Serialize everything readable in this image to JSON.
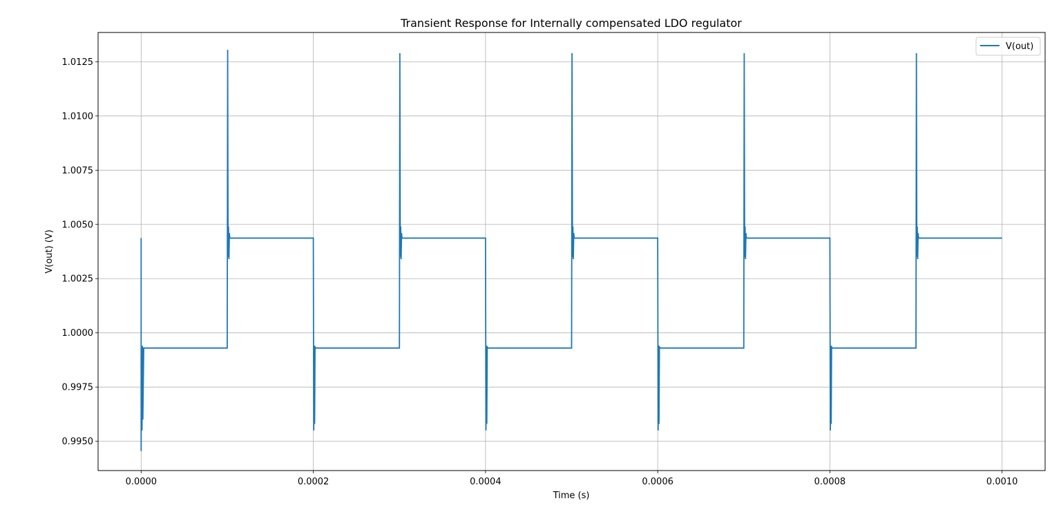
{
  "chart_data": {
    "type": "line",
    "title": "Transient Response for Internally compensated LDO regulator",
    "xlabel": "Time (s)",
    "ylabel": "V(out) (V)",
    "xlim": [
      -5e-05,
      0.00105
    ],
    "ylim": [
      0.99365,
      1.01385
    ],
    "x_ticks": [
      0.0,
      0.0002,
      0.0004,
      0.0006,
      0.0008,
      0.001
    ],
    "x_tick_labels": [
      "0.0000",
      "0.0002",
      "0.0004",
      "0.0006",
      "0.0008",
      "0.0010"
    ],
    "y_ticks": [
      0.995,
      0.9975,
      1.0,
      1.0025,
      1.005,
      1.0075,
      1.01,
      1.0125
    ],
    "y_tick_labels": [
      "0.9950",
      "0.9975",
      "1.0000",
      "1.0025",
      "1.0050",
      "1.0075",
      "1.0100",
      "1.0125"
    ],
    "grid": true,
    "legend_position": "top-right",
    "colors": {
      "series": "#1f77b4",
      "grid": "#b0b0b0"
    },
    "series": [
      {
        "name": "V(out)",
        "x": [
          0.0,
          0.0,
          5e-07,
          1e-06,
          1.5e-06,
          2e-06,
          3e-06,
          5e-06,
          0.0001,
          0.0001005,
          0.000101,
          0.0001015,
          0.000102,
          0.0001025,
          0.000103,
          0.000104,
          0.000106,
          0.0002,
          0.0002005,
          0.000201,
          0.0002015,
          0.000202,
          0.000203,
          0.000205,
          0.0003,
          0.0003005,
          0.000301,
          0.0003015,
          0.000302,
          0.0003025,
          0.000303,
          0.000304,
          0.000306,
          0.0004,
          0.0004005,
          0.000401,
          0.0004015,
          0.000402,
          0.000403,
          0.000405,
          0.0005,
          0.0005005,
          0.000501,
          0.0005015,
          0.000502,
          0.0005025,
          0.000503,
          0.000504,
          0.000506,
          0.0006,
          0.0006005,
          0.000601,
          0.0006015,
          0.000602,
          0.000603,
          0.000605,
          0.0007,
          0.0007005,
          0.000701,
          0.0007015,
          0.000702,
          0.0007025,
          0.000703,
          0.000704,
          0.000706,
          0.0008,
          0.0008005,
          0.000801,
          0.0008015,
          0.000802,
          0.000803,
          0.000805,
          0.0009,
          0.0009005,
          0.000901,
          0.0009015,
          0.000902,
          0.0009025,
          0.000903,
          0.000904,
          0.000906,
          0.001
        ],
        "y": [
          1.00437,
          0.99455,
          0.9993,
          0.9955,
          0.9994,
          0.996,
          0.9993,
          0.9993,
          0.9993,
          1.01305,
          1.0035,
          1.0049,
          1.0034,
          1.0046,
          1.00437,
          1.00437,
          1.00437,
          1.00437,
          0.9955,
          0.9994,
          0.9958,
          0.99935,
          0.9993,
          0.9993,
          0.9993,
          1.0129,
          1.0035,
          1.0049,
          1.0034,
          1.0046,
          1.00437,
          1.00437,
          1.00437,
          1.00437,
          0.9955,
          0.9994,
          0.9958,
          0.99935,
          0.9993,
          0.9993,
          0.9993,
          1.0129,
          1.0035,
          1.0049,
          1.0034,
          1.0046,
          1.00437,
          1.00437,
          1.00437,
          1.00437,
          0.9955,
          0.9994,
          0.9958,
          0.99935,
          0.9993,
          0.9993,
          0.9993,
          1.0129,
          1.0035,
          1.0049,
          1.0034,
          1.0046,
          1.00437,
          1.00437,
          1.00437,
          1.00437,
          0.9955,
          0.9994,
          0.9958,
          0.99935,
          0.9993,
          0.9993,
          0.9993,
          1.0129,
          1.0035,
          1.0049,
          1.0034,
          1.0046,
          1.00437,
          1.00437,
          1.00437,
          1.00437
        ]
      }
    ]
  }
}
